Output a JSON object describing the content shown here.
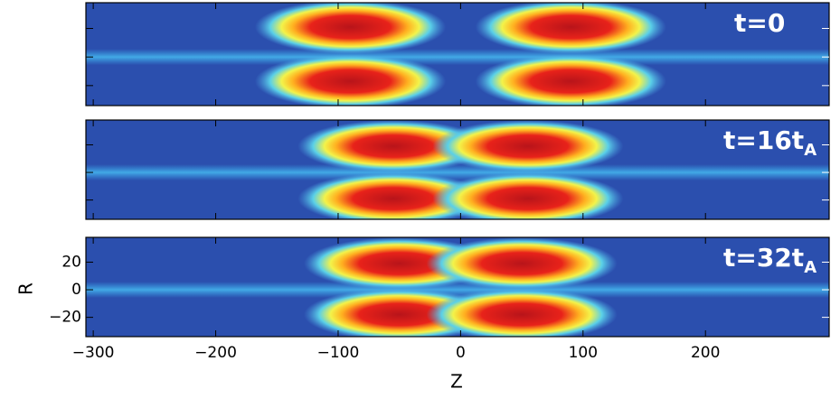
{
  "chart_data": {
    "type": "heatmap-panels",
    "xlabel": "Z",
    "ylabel": "R",
    "xlim": [
      -306,
      301
    ],
    "xticks": [
      {
        "value": -300,
        "label": "−300"
      },
      {
        "value": -200,
        "label": "−200"
      },
      {
        "value": -100,
        "label": "−100"
      },
      0,
      100,
      200
    ],
    "ylim": [
      -34,
      38
    ],
    "yticks": [
      {
        "value": -20,
        "label": "−20"
      },
      0,
      20
    ],
    "panels": [
      {
        "label": "t=0",
        "subscript": null,
        "blobs": [
          {
            "z": -90,
            "r": 21
          },
          {
            "z": -90,
            "r": -17
          },
          {
            "z": 90,
            "r": 21
          },
          {
            "z": 90,
            "r": -17
          }
        ]
      },
      {
        "label": "t=16t",
        "subscript": "A",
        "blobs": [
          {
            "z": -55,
            "r": 19
          },
          {
            "z": -55,
            "r": -19
          },
          {
            "z": 55,
            "r": 19
          },
          {
            "z": 55,
            "r": -19
          }
        ]
      },
      {
        "label": "t=32t",
        "subscript": "A",
        "blobs": [
          {
            "z": -50,
            "r": 19
          },
          {
            "z": -50,
            "r": -18
          },
          {
            "z": 50,
            "r": 19
          },
          {
            "z": 50,
            "r": -18
          }
        ]
      }
    ]
  }
}
